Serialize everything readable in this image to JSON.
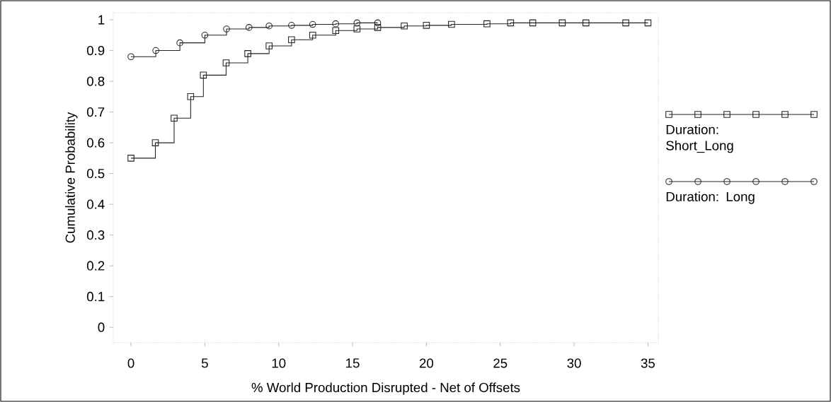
{
  "chart_data": {
    "type": "step",
    "xlabel": "% World Production Disrupted - Net of Offsets",
    "ylabel": "Cumulative Probability",
    "xlim": [
      -1.2,
      35.7
    ],
    "ylim": [
      -0.05,
      1.023
    ],
    "xticks": [
      0,
      5,
      10,
      15,
      20,
      25,
      30,
      35
    ],
    "yticks": [
      0,
      0.1,
      0.2,
      0.3,
      0.4,
      0.5,
      0.6,
      0.7,
      0.8,
      0.9,
      1
    ],
    "grid": false,
    "legend": "right",
    "series": [
      {
        "name": "Duration: Short_Long",
        "color": "#222222",
        "marker": "square",
        "x": [
          0,
          1.65,
          2.92,
          4.04,
          4.9,
          6.44,
          7.91,
          9.35,
          10.87,
          12.3,
          13.86,
          15.3,
          16.7,
          18.5,
          20.0,
          21.7,
          24.1,
          25.7,
          27.2,
          29.2,
          30.8,
          33.5,
          35
        ],
        "values": [
          0.55,
          0.6,
          0.68,
          0.75,
          0.82,
          0.86,
          0.89,
          0.915,
          0.935,
          0.95,
          0.965,
          0.97,
          0.975,
          0.98,
          0.982,
          0.985,
          0.987,
          0.99,
          0.99,
          0.99,
          0.99,
          0.99,
          0.99
        ]
      },
      {
        "name": "Duration: Long",
        "color": "#222222",
        "marker": "circle",
        "x": [
          0,
          1.68,
          3.31,
          5.0,
          6.47,
          7.99,
          9.35,
          10.87,
          12.3,
          13.86,
          15.3,
          16.7
        ],
        "values": [
          0.88,
          0.9,
          0.925,
          0.95,
          0.97,
          0.975,
          0.98,
          0.982,
          0.985,
          0.987,
          0.99,
          0.99
        ]
      }
    ]
  }
}
